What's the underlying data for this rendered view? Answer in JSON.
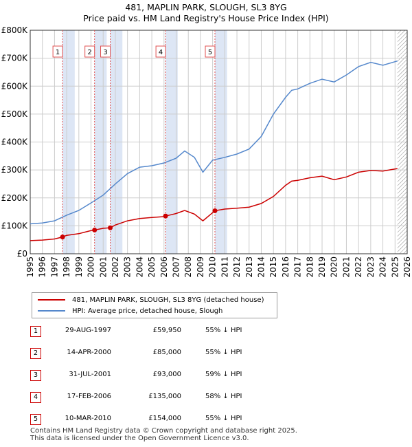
{
  "title_line1": "481, MAPLIN PARK, SLOUGH, SL3 8YG",
  "title_line2": "Price paid vs. HM Land Registry's House Price Index (HPI)",
  "legend": {
    "property_label": "481, MAPLIN PARK, SLOUGH, SL3 8YG (detached house)",
    "hpi_label": "HPI: Average price, detached house, Slough"
  },
  "colors": {
    "property": "#cc0000",
    "hpi": "#5588cc",
    "event_band": "#dde6f5",
    "event_line": "#e05050",
    "grid": "#cccccc",
    "hatch": "#888888"
  },
  "sales": [
    {
      "num": "1",
      "date": "29-AUG-1997",
      "price": "£59,950",
      "hpi": "55% ↓ HPI"
    },
    {
      "num": "2",
      "date": "14-APR-2000",
      "price": "£85,000",
      "hpi": "55% ↓ HPI"
    },
    {
      "num": "3",
      "date": "31-JUL-2001",
      "price": "£93,000",
      "hpi": "59% ↓ HPI"
    },
    {
      "num": "4",
      "date": "17-FEB-2006",
      "price": "£135,000",
      "hpi": "58% ↓ HPI"
    },
    {
      "num": "5",
      "date": "10-MAR-2010",
      "price": "£154,000",
      "hpi": "55% ↓ HPI"
    }
  ],
  "footer": {
    "line1": "Contains HM Land Registry data © Crown copyright and database right 2025.",
    "line2": "This data is licensed under the Open Government Licence v3.0."
  },
  "chart_data": {
    "type": "line",
    "title": "Price paid vs. HM Land Registry's House Price Index (HPI)",
    "xlim": [
      1995,
      2026
    ],
    "ylim": [
      0,
      800000
    ],
    "x_ticks": [
      1995,
      1996,
      1997,
      1998,
      1999,
      2000,
      2001,
      2002,
      2003,
      2004,
      2005,
      2006,
      2007,
      2008,
      2009,
      2010,
      2011,
      2012,
      2013,
      2014,
      2015,
      2016,
      2017,
      2018,
      2019,
      2020,
      2021,
      2022,
      2023,
      2024,
      2025,
      2026
    ],
    "y_ticks": [
      0,
      100000,
      200000,
      300000,
      400000,
      500000,
      600000,
      700000,
      800000
    ],
    "y_tick_labels": [
      "£0",
      "£100K",
      "£200K",
      "£300K",
      "£400K",
      "£500K",
      "£600K",
      "£700K",
      "£800K"
    ],
    "data_end": 2025.2,
    "events": [
      {
        "label": "1",
        "x": 1997.66
      },
      {
        "label": "2",
        "x": 2000.29
      },
      {
        "label": "3",
        "x": 2001.58
      },
      {
        "label": "4",
        "x": 2006.13
      },
      {
        "label": "5",
        "x": 2010.19
      }
    ],
    "series": [
      {
        "name": "481, MAPLIN PARK, SLOUGH, SL3 8YG (detached house)",
        "x": [
          1995,
          1996,
          1997,
          1997.66,
          1998,
          1999,
          2000,
          2000.29,
          2001,
          2001.58,
          2002,
          2003,
          2004,
          2005,
          2006,
          2006.13,
          2007,
          2007.7,
          2008.5,
          2009.2,
          2010,
          2010.19,
          2011,
          2012,
          2013,
          2014,
          2015,
          2016,
          2016.5,
          2017,
          2018,
          2019,
          2020,
          2021,
          2022,
          2023,
          2024,
          2025.2
        ],
        "values": [
          47000,
          49000,
          53000,
          59950,
          66000,
          72000,
          83000,
          85000,
          91000,
          93000,
          103000,
          118000,
          126000,
          130000,
          133000,
          135000,
          144000,
          155000,
          142000,
          118000,
          147000,
          154000,
          160000,
          163000,
          167000,
          180000,
          205000,
          245000,
          260000,
          263000,
          272000,
          278000,
          265000,
          275000,
          292000,
          298000,
          296000,
          305000
        ]
      },
      {
        "name": "HPI: Average price, detached house, Slough",
        "x": [
          1995,
          1996,
          1997,
          1998,
          1999,
          2000,
          2001,
          2002,
          2003,
          2004,
          2005,
          2006,
          2007,
          2007.7,
          2008.5,
          2009.2,
          2010,
          2011,
          2012,
          2013,
          2014,
          2015,
          2016,
          2016.5,
          2017,
          2018,
          2019,
          2020,
          2021,
          2022,
          2023,
          2024,
          2025.2
        ],
        "values": [
          107000,
          110000,
          118000,
          138000,
          155000,
          182000,
          210000,
          250000,
          287000,
          310000,
          315000,
          325000,
          342000,
          368000,
          345000,
          292000,
          335000,
          345000,
          357000,
          375000,
          420000,
          500000,
          560000,
          585000,
          590000,
          610000,
          625000,
          615000,
          640000,
          670000,
          685000,
          675000,
          690000
        ]
      }
    ]
  }
}
